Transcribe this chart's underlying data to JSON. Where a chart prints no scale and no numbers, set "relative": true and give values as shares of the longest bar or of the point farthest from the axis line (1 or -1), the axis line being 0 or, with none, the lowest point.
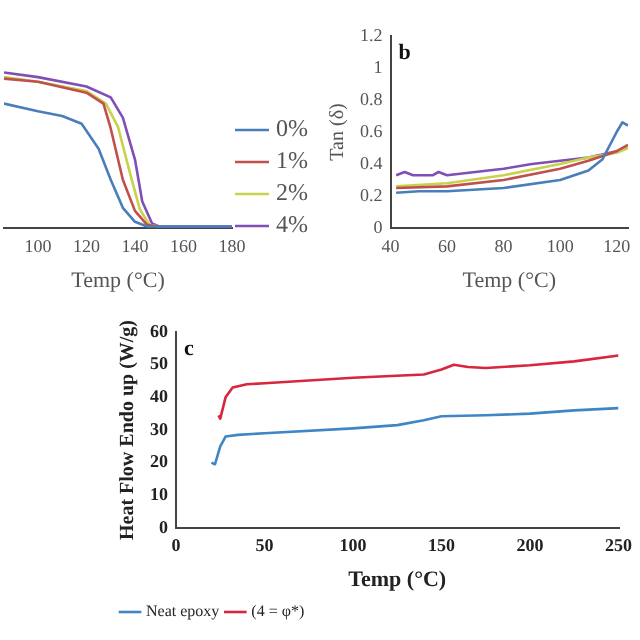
{
  "chart_data": [
    {
      "type": "line",
      "relative": true,
      "xlabel": "Temp (°C)",
      "xlim": [
        86,
        180
      ],
      "xticks": [
        100,
        120,
        140,
        160,
        180
      ],
      "tick_labels": "x",
      "legend": "right",
      "grid": false,
      "marker": "none",
      "series": [
        {
          "name": "0%",
          "color": "#4a7ebb",
          "x": [
            86,
            100,
            110,
            118,
            125,
            130,
            135,
            140,
            145,
            150,
            180
          ],
          "values": [
            0.8,
            0.75,
            0.72,
            0.67,
            0.51,
            0.31,
            0.13,
            0.04,
            0.01,
            0.01,
            0.01
          ]
        },
        {
          "name": "1%",
          "color": "#c0504d",
          "x": [
            86,
            100,
            120,
            127,
            130,
            135,
            140,
            145,
            150
          ],
          "values": [
            0.96,
            0.94,
            0.87,
            0.8,
            0.64,
            0.31,
            0.11,
            0.02,
            0.01
          ]
        },
        {
          "name": "2%",
          "color": "#c8d24a",
          "x": [
            86,
            100,
            120,
            128,
            133,
            138,
            142,
            146,
            150
          ],
          "values": [
            0.97,
            0.94,
            0.88,
            0.8,
            0.65,
            0.35,
            0.12,
            0.02,
            0.01
          ]
        },
        {
          "name": "4%",
          "color": "#7f4fb5",
          "x": [
            86,
            100,
            120,
            130,
            135,
            140,
            143,
            147,
            150,
            180
          ],
          "values": [
            1,
            0.97,
            0.91,
            0.84,
            0.71,
            0.44,
            0.17,
            0.03,
            0.01,
            0.01
          ]
        }
      ]
    },
    {
      "type": "line",
      "xlabel": "Temp (°C)",
      "ylabel": "Tan (δ)",
      "annotations": [
        "b"
      ],
      "xlim": [
        40,
        124
      ],
      "xticks": [
        40,
        60,
        80,
        100,
        120
      ],
      "ylim": [
        0,
        1.2
      ],
      "yticks": [
        0,
        0.2,
        0.4,
        0.6,
        0.8,
        1,
        1.2
      ],
      "legend": false,
      "grid": false,
      "marker": "none",
      "series": [
        {
          "color": "#4a7ebb",
          "x": [
            42,
            50,
            60,
            80,
            100,
            110,
            115,
            120,
            122,
            124
          ],
          "values": [
            0.22,
            0.23,
            0.23,
            0.25,
            0.3,
            0.36,
            0.43,
            0.6,
            0.66,
            0.64
          ]
        },
        {
          "color": "#c0504d",
          "x": [
            42,
            60,
            80,
            100,
            110,
            120,
            124
          ],
          "values": [
            0.25,
            0.26,
            0.3,
            0.37,
            0.42,
            0.48,
            0.52
          ]
        },
        {
          "color": "#c8d24a",
          "x": [
            42,
            60,
            80,
            100,
            110,
            120,
            124
          ],
          "values": [
            0.26,
            0.28,
            0.33,
            0.4,
            0.44,
            0.47,
            0.5
          ]
        },
        {
          "color": "#7f4fb5",
          "x": [
            42,
            45,
            48,
            55,
            57,
            60,
            70,
            80,
            90,
            100,
            110,
            120,
            124
          ],
          "values": [
            0.33,
            0.35,
            0.33,
            0.33,
            0.35,
            0.33,
            0.35,
            0.37,
            0.4,
            0.42,
            0.44,
            0.48,
            0.5
          ]
        }
      ]
    },
    {
      "type": "line",
      "xlabel": "Temp (°C)",
      "ylabel": "Heat Flow Endo up (W/g)",
      "annotations": [
        "c"
      ],
      "xlim": [
        0,
        250
      ],
      "xticks": [
        0,
        50,
        100,
        150,
        200,
        250
      ],
      "ylim": [
        0,
        60
      ],
      "yticks": [
        0,
        10,
        20,
        30,
        40,
        50,
        60
      ],
      "legend": "bottom left",
      "grid": false,
      "marker": "none",
      "series": [
        {
          "name": "Neat epoxy",
          "color": "#3f86c4",
          "x": [
            20,
            22,
            25,
            28,
            35,
            50,
            100,
            125,
            140,
            150,
            175,
            200,
            225,
            250
          ],
          "values": [
            20,
            19.5,
            25,
            28,
            28.5,
            29,
            30.5,
            31.5,
            33,
            34.2,
            34.5,
            35,
            36,
            36.7
          ]
        },
        {
          "name": "(4 = φ*)",
          "color": "#d7263d",
          "x": [
            24,
            25,
            28,
            32,
            40,
            50,
            100,
            140,
            150,
            157,
            165,
            175,
            200,
            225,
            250
          ],
          "values": [
            34.5,
            33.5,
            40,
            43,
            44,
            44.3,
            46,
            47,
            48.5,
            50,
            49.3,
            49,
            49.8,
            51,
            52.8
          ]
        }
      ]
    }
  ]
}
